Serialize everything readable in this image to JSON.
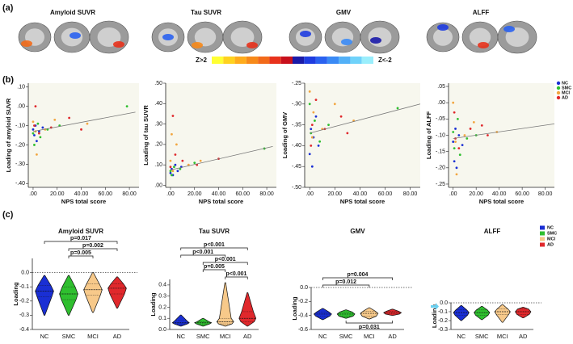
{
  "panel_labels": [
    "(a)",
    "(b)",
    "(c)"
  ],
  "brain_maps": {
    "titles": [
      "Amyloid SUVR",
      "Tau SUVR",
      "GMV",
      "ALFF"
    ],
    "colorbar": {
      "low_label": "Z>2",
      "high_label": "Z<-2",
      "colors": [
        "#ffff33",
        "#ffd21f",
        "#ffac1c",
        "#f78a1a",
        "#f26a1a",
        "#e8321c",
        "#c8101c",
        "#1a1aa8",
        "#1e3ce0",
        "#2a62f0",
        "#3a8af5",
        "#52b0f7",
        "#6fd2fa",
        "#9aeefc"
      ]
    }
  },
  "chart_data": [
    {
      "type": "scatter",
      "ylabel": "Loading of amyloid SUVR",
      "xlabel": "NPS total score",
      "xlim": [
        -4,
        88
      ],
      "ylim": [
        -0.42,
        0.12
      ],
      "xticks": [
        {
          "value": 0,
          "label": ".00"
        },
        {
          "value": 20,
          "label": "20.00"
        },
        {
          "value": 40,
          "label": "40.00"
        },
        {
          "value": 60,
          "label": "60.00"
        },
        {
          "value": 80,
          "label": "80.00"
        }
      ],
      "yticks": [
        {
          "value": 0.1,
          "label": ".10"
        },
        {
          "value": 0,
          "label": ".00"
        },
        {
          "value": -0.1,
          "label": "-.10"
        },
        {
          "value": -0.2,
          "label": "-.20"
        },
        {
          "value": -0.3,
          "label": "-.30"
        },
        {
          "value": -0.4,
          "label": "-.40"
        }
      ],
      "fit": {
        "x": [
          0,
          85
        ],
        "y": [
          -0.13,
          -0.03
        ]
      },
      "series": [
        {
          "name": "NC",
          "color": "#1a2fd4",
          "x": [
            0,
            1,
            2,
            3,
            5,
            8
          ],
          "values": [
            -0.12,
            -0.15,
            -0.1,
            -0.18,
            -0.13,
            -0.11
          ]
        },
        {
          "name": "SMC",
          "color": "#2fbf2f",
          "x": [
            0,
            1,
            4,
            6,
            12,
            22,
            78
          ],
          "values": [
            -0.14,
            -0.2,
            -0.09,
            -0.16,
            -0.12,
            -0.1,
            0.0
          ]
        },
        {
          "name": "MCI",
          "color": "#f2a640",
          "x": [
            0,
            2,
            3,
            10,
            18,
            45
          ],
          "values": [
            -0.08,
            -0.13,
            -0.25,
            -0.12,
            -0.07,
            -0.09
          ]
        },
        {
          "name": "AD",
          "color": "#e0282c",
          "x": [
            1,
            2,
            5,
            15,
            30,
            40
          ],
          "values": [
            -0.1,
            0.0,
            -0.14,
            -0.11,
            -0.06,
            -0.12
          ]
        }
      ]
    },
    {
      "type": "scatter",
      "ylabel": "Loading of tau SUVR",
      "xlabel": "NPS total score",
      "xlim": [
        -4,
        88
      ],
      "ylim": [
        -0.01,
        0.5
      ],
      "xticks": [
        {
          "value": 0,
          "label": ".00"
        },
        {
          "value": 20,
          "label": "20.00"
        },
        {
          "value": 40,
          "label": "40.00"
        },
        {
          "value": 60,
          "label": "60.00"
        },
        {
          "value": 80,
          "label": "80.00"
        }
      ],
      "yticks": [
        {
          "value": 0.5,
          "label": ".50"
        },
        {
          "value": 0.4,
          "label": ".40"
        },
        {
          "value": 0.3,
          "label": ".30"
        },
        {
          "value": 0.2,
          "label": ".20"
        },
        {
          "value": 0.1,
          "label": ".10"
        },
        {
          "value": 0,
          "label": ".00"
        }
      ],
      "fit": {
        "x": [
          0,
          85
        ],
        "y": [
          0.075,
          0.19
        ]
      },
      "series": [
        {
          "name": "NC",
          "color": "#1a2fd4",
          "x": [
            0,
            1,
            2,
            4,
            6,
            9
          ],
          "values": [
            0.06,
            0.08,
            0.05,
            0.1,
            0.07,
            0.09
          ]
        },
        {
          "name": "SMC",
          "color": "#2fbf2f",
          "x": [
            0,
            1,
            3,
            8,
            20,
            78
          ],
          "values": [
            0.07,
            0.05,
            0.09,
            0.08,
            0.11,
            0.18
          ]
        },
        {
          "name": "MCI",
          "color": "#f2a640",
          "x": [
            0,
            1,
            2,
            5,
            15,
            25
          ],
          "values": [
            0.12,
            0.25,
            0.07,
            0.2,
            0.1,
            0.12
          ]
        },
        {
          "name": "AD",
          "color": "#e0282c",
          "x": [
            0,
            2,
            4,
            10,
            22,
            40
          ],
          "values": [
            0.09,
            0.34,
            0.15,
            0.12,
            0.1,
            0.13
          ]
        }
      ]
    },
    {
      "type": "scatter",
      "ylabel": "Loading of GMV",
      "xlabel": "NPS total score",
      "xlim": [
        -4,
        88
      ],
      "ylim": [
        -0.5,
        -0.25
      ],
      "xticks": [
        {
          "value": 0,
          "label": ".00"
        },
        {
          "value": 20,
          "label": "20.00"
        },
        {
          "value": 40,
          "label": "40.00"
        },
        {
          "value": 60,
          "label": "60.00"
        },
        {
          "value": 80,
          "label": "80.00"
        }
      ],
      "yticks": [
        {
          "value": -0.25,
          "label": "-.25"
        },
        {
          "value": -0.3,
          "label": "-.30"
        },
        {
          "value": -0.35,
          "label": "-.35"
        },
        {
          "value": -0.4,
          "label": "-.40"
        },
        {
          "value": -0.45,
          "label": "-.45"
        },
        {
          "value": -0.5,
          "label": "-.50"
        }
      ],
      "fit": {
        "x": [
          0,
          88
        ],
        "y": [
          -0.37,
          -0.3
        ]
      },
      "series": [
        {
          "name": "NC",
          "color": "#1a2fd4",
          "x": [
            0,
            1,
            2,
            3,
            5,
            7
          ],
          "values": [
            -0.42,
            -0.36,
            -0.45,
            -0.38,
            -0.33,
            -0.4
          ]
        },
        {
          "name": "SMC",
          "color": "#2fbf2f",
          "x": [
            0,
            1,
            4,
            8,
            15,
            70
          ],
          "values": [
            -0.3,
            -0.37,
            -0.34,
            -0.39,
            -0.35,
            -0.31
          ]
        },
        {
          "name": "MCI",
          "color": "#f2a640",
          "x": [
            0,
            2,
            3,
            10,
            20,
            35
          ],
          "values": [
            -0.27,
            -0.38,
            -0.32,
            -0.36,
            -0.3,
            -0.34
          ]
        },
        {
          "name": "AD",
          "color": "#e0282c",
          "x": [
            1,
            2,
            5,
            12,
            25,
            30
          ],
          "values": [
            -0.4,
            -0.35,
            -0.29,
            -0.36,
            -0.33,
            -0.37
          ]
        }
      ]
    },
    {
      "type": "scatter",
      "ylabel": "Loading of ALFF",
      "xlabel": "NPS total score",
      "legend": "right",
      "xlim": [
        -4,
        88
      ],
      "ylim": [
        -0.26,
        0.06
      ],
      "xticks": [
        {
          "value": 0,
          "label": ".00"
        },
        {
          "value": 20,
          "label": "20.00"
        },
        {
          "value": 40,
          "label": "40.00"
        },
        {
          "value": 60,
          "label": "60.00"
        },
        {
          "value": 80,
          "label": "80.00"
        }
      ],
      "yticks": [
        {
          "value": 0.05,
          "label": ".05"
        },
        {
          "value": 0,
          "label": ".00"
        },
        {
          "value": -0.05,
          "label": "-.05"
        },
        {
          "value": -0.1,
          "label": "-.10"
        },
        {
          "value": -0.15,
          "label": "-.15"
        },
        {
          "value": -0.2,
          "label": "-.20"
        },
        {
          "value": -0.25,
          "label": "-.25"
        }
      ],
      "fit": {
        "x": [
          0,
          88
        ],
        "y": [
          -0.11,
          -0.065
        ]
      },
      "series": [
        {
          "name": "NC",
          "color": "#1a2fd4",
          "x": [
            0,
            1,
            2,
            3,
            5,
            8
          ],
          "values": [
            -0.12,
            -0.18,
            -0.08,
            -0.2,
            -0.1,
            -0.13
          ]
        },
        {
          "name": "SMC",
          "color": "#2fbf2f",
          "x": [
            0,
            1,
            4,
            6,
            12,
            20
          ],
          "values": [
            -0.09,
            -0.14,
            -0.05,
            -0.16,
            -0.11,
            -0.1
          ]
        },
        {
          "name": "MCI",
          "color": "#f2a640",
          "x": [
            0,
            2,
            3,
            10,
            18,
            38
          ],
          "values": [
            0.0,
            -0.12,
            -0.22,
            -0.1,
            -0.06,
            -0.09
          ]
        },
        {
          "name": "AD",
          "color": "#e0282c",
          "x": [
            1,
            2,
            5,
            15,
            25,
            30
          ],
          "values": [
            -0.03,
            -0.11,
            -0.14,
            -0.08,
            -0.07,
            -0.1
          ]
        }
      ]
    },
    {
      "type": "violin",
      "title": "Amyloid SUVR",
      "ylabel": "Loading",
      "refline": 0,
      "categories": [
        "NC",
        "SMC",
        "MCI",
        "AD"
      ],
      "colors": [
        "#1a2fd4",
        "#2fbf2f",
        "#f7c98a",
        "#e0282c"
      ],
      "ylim": [
        -0.4,
        0.1
      ],
      "yticks": [
        {
          "value": 0,
          "label": "0.0"
        },
        -0.1,
        -0.2,
        -0.3,
        -0.4
      ],
      "min": [
        -0.3,
        -0.3,
        -0.28,
        -0.25
      ],
      "q1": [
        -0.17,
        -0.19,
        -0.16,
        -0.15
      ],
      "median": [
        -0.13,
        -0.15,
        -0.12,
        -0.11
      ],
      "q3": [
        -0.09,
        -0.1,
        -0.08,
        -0.08
      ],
      "max": [
        -0.02,
        -0.02,
        0.0,
        -0.03
      ],
      "brackets": [
        {
          "groups": [
            "NC",
            "AD"
          ],
          "label": "p=0.017"
        },
        {
          "groups": [
            "SMC",
            "AD"
          ],
          "label": "p=0.002"
        },
        {
          "groups": [
            "SMC",
            "MCI"
          ],
          "label": "p=0.005"
        }
      ]
    },
    {
      "type": "violin",
      "title": "Tau SUVR",
      "ylabel": "Loading",
      "categories": [
        "NC",
        "SMC",
        "MCI",
        "AD"
      ],
      "colors": [
        "#1a2fd4",
        "#2fbf2f",
        "#f7c98a",
        "#e0282c"
      ],
      "ylim": [
        0,
        0.45
      ],
      "yticks": [
        {
          "value": 0,
          "label": "0.0"
        },
        0.1,
        0.2,
        0.3,
        0.4
      ],
      "min": [
        0.03,
        0.03,
        0.03,
        0.03
      ],
      "q1": [
        0.05,
        0.05,
        0.05,
        0.07
      ],
      "median": [
        0.06,
        0.06,
        0.07,
        0.1
      ],
      "q3": [
        0.08,
        0.07,
        0.1,
        0.16
      ],
      "max": [
        0.13,
        0.1,
        0.42,
        0.33
      ],
      "brackets": [
        {
          "groups": [
            "NC",
            "AD"
          ],
          "label": "p<0.001"
        },
        {
          "groups": [
            "NC",
            "MCI"
          ],
          "label": "p<0.001"
        },
        {
          "groups": [
            "SMC",
            "AD"
          ],
          "label": "p<0.001"
        },
        {
          "groups": [
            "SMC",
            "MCI"
          ],
          "label": "p=0.005"
        },
        {
          "groups": [
            "MCI",
            "AD"
          ],
          "label": "p<0.001"
        }
      ]
    },
    {
      "type": "violin",
      "title": "GMV",
      "ylabel": "Loading",
      "refline": 0,
      "legend": "right",
      "categories": [
        "NC",
        "SMC",
        "MCI",
        "AD"
      ],
      "colors": [
        "#1a2fd4",
        "#2fbf2f",
        "#f7c98a",
        "#e0282c"
      ],
      "ylim": [
        -0.6,
        0.0
      ],
      "yticks": [
        {
          "value": 0,
          "label": "0.0"
        },
        -0.2,
        -0.4,
        -0.6
      ],
      "min": [
        -0.46,
        -0.44,
        -0.45,
        -0.4
      ],
      "q1": [
        -0.41,
        -0.41,
        -0.41,
        -0.38
      ],
      "median": [
        -0.38,
        -0.38,
        -0.37,
        -0.36
      ],
      "q3": [
        -0.35,
        -0.35,
        -0.34,
        -0.34
      ],
      "max": [
        -0.3,
        -0.32,
        -0.29,
        -0.31
      ],
      "brackets": [
        {
          "groups": [
            "NC",
            "AD"
          ],
          "label": "p=0.004"
        },
        {
          "groups": [
            "NC",
            "MCI"
          ],
          "label": "p=0.012"
        },
        {
          "groups": [
            "SMC",
            "AD"
          ],
          "label": "p=0.031",
          "position": "below"
        }
      ]
    },
    {
      "type": "violin",
      "title": "ALFF",
      "ylabel": "Loading",
      "refline": 0,
      "categories": [
        "NC",
        "SMC",
        "MCI",
        "AD"
      ],
      "colors": [
        "#1a2fd4",
        "#2fbf2f",
        "#f7c98a",
        "#e0282c"
      ],
      "ylim": [
        -0.3,
        0.0
      ],
      "yticks": [
        {
          "value": 0,
          "label": "0.0"
        },
        -0.1,
        -0.2,
        -0.3
      ],
      "min": [
        -0.2,
        -0.19,
        -0.22,
        -0.17
      ],
      "q1": [
        -0.14,
        -0.14,
        -0.13,
        -0.13
      ],
      "median": [
        -0.11,
        -0.11,
        -0.1,
        -0.1
      ],
      "q3": [
        -0.08,
        -0.08,
        -0.07,
        -0.07
      ],
      "max": [
        -0.03,
        -0.04,
        -0.02,
        -0.05
      ],
      "brackets": []
    }
  ]
}
